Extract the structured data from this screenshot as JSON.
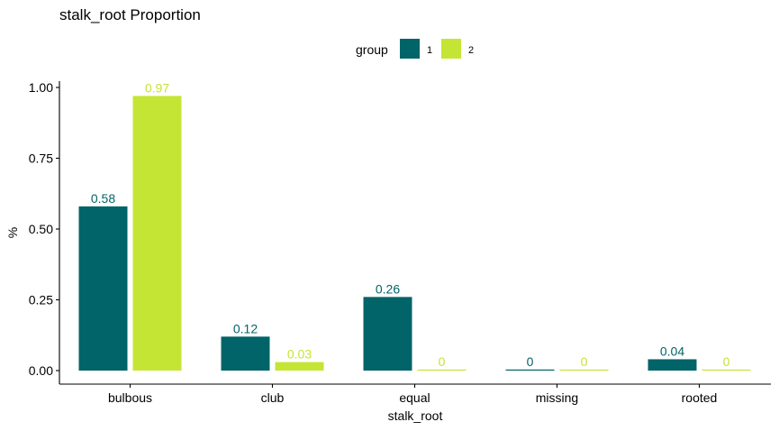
{
  "chart_data": {
    "type": "bar",
    "title": "stalk_root Proportion",
    "xlabel": "stalk_root",
    "ylabel": "%",
    "categories": [
      "bulbous",
      "club",
      "equal",
      "missing",
      "rooted"
    ],
    "series": [
      {
        "name": "1",
        "values": [
          0.58,
          0.12,
          0.26,
          0,
          0.04
        ],
        "labels": [
          "0.58",
          "0.12",
          "0.26",
          "0",
          "0.04"
        ],
        "color": "#006468"
      },
      {
        "name": "2",
        "values": [
          0.97,
          0.03,
          0,
          0,
          0
        ],
        "labels": [
          "0.97",
          "0.03",
          "0",
          "0",
          "0"
        ],
        "color": "#c5e535"
      }
    ],
    "ylim": [
      0,
      1.05
    ],
    "yticks": [
      0,
      0.25,
      0.5,
      0.75,
      1.0
    ],
    "ytick_labels": [
      "0.00",
      "0.25",
      "0.50",
      "0.75",
      "1.00"
    ],
    "legend": {
      "title": "group",
      "position": "top"
    },
    "grid": false
  }
}
